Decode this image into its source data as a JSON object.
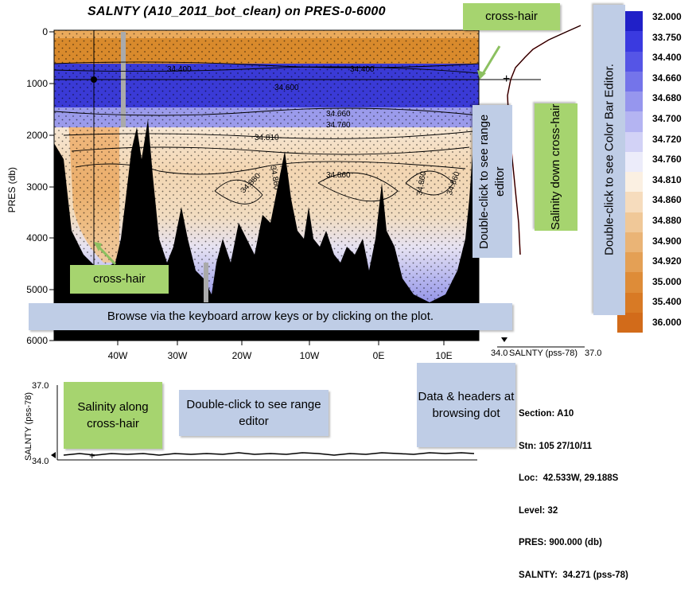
{
  "title": "SALNTY (A10_2011_bot_clean) on PRES-0-6000",
  "section_plot": {
    "y_axis_label": "PRES (db)",
    "y_ticks": [
      "0",
      "1000",
      "2000",
      "3000",
      "4000",
      "5000",
      "6000"
    ],
    "x_ticks": [
      "40W",
      "30W",
      "20W",
      "10W",
      "0E",
      "10E"
    ],
    "contour_labels": [
      "34.400",
      "34.400",
      "34.600",
      "34.660",
      "34.760",
      "34.810",
      "34.860",
      "34.880",
      "34.860",
      "34.860",
      "34.860"
    ]
  },
  "profile_plot": {
    "x_axis_label": "SALNTY (pss-78)",
    "x_min": "34.0",
    "x_max": "37.0"
  },
  "along_plot": {
    "y_axis_label": "SALNTY (pss-78)",
    "y_max": "37.0",
    "y_min": "34.0"
  },
  "color_bar": {
    "labels": [
      "32.000",
      "33.750",
      "34.400",
      "34.660",
      "34.680",
      "34.700",
      "34.720",
      "34.760",
      "34.810",
      "34.860",
      "34.880",
      "34.900",
      "34.920",
      "35.000",
      "35.400",
      "36.000"
    ],
    "colors": [
      "#2020c8",
      "#3a3ae0",
      "#5555e6",
      "#7474ea",
      "#9696ee",
      "#b4b4f2",
      "#d2d2f6",
      "#ececfa",
      "#fbf0e2",
      "#f6dcbd",
      "#f0c898",
      "#eab476",
      "#e4a055",
      "#de8c38",
      "#d87a25",
      "#d26b1a"
    ]
  },
  "info": {
    "section": "Section: A10",
    "station": "Stn: 105 27/10/11",
    "location": "Loc:  42.533W, 29.188S",
    "level": "Level: 32",
    "pres": "PRES: 900.000 (db)",
    "salnty": "SALNTY:  34.271 (pss-78)"
  },
  "annotations": {
    "crosshair_top": "cross-hair",
    "crosshair_bottom": "cross-hair",
    "browse": "Browse via the keyboard arrow keys or by clicking on the plot.",
    "range_editor_right": "Double-click to see range editor",
    "salinity_down": "Salinity down cross-hair",
    "color_bar_editor": "Double-click to see Color Bar Editor.",
    "salinity_along": "Salinity along cross-hair",
    "range_editor_bottom": "Double-click to see range editor",
    "data_headers": "Data & headers at browsing dot"
  }
}
